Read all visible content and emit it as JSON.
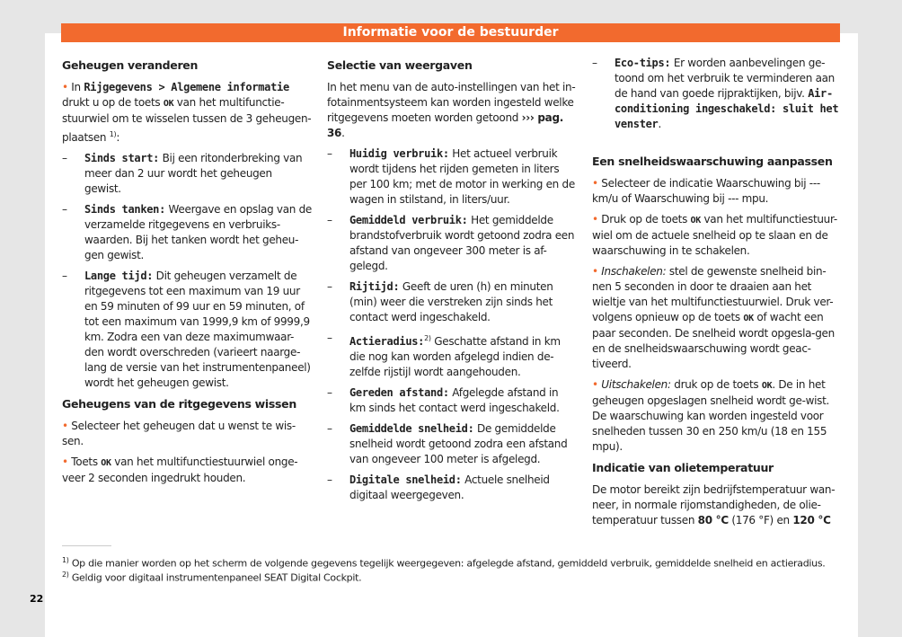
{
  "header": {
    "title": "Informatie voor de bestuurder"
  },
  "columns": [
    [
      {
        "k": "h",
        "r": [
          {
            "t": "Geheugen veranderen"
          }
        ]
      },
      {
        "k": "b",
        "r": [
          {
            "t": "In "
          },
          {
            "t": "Rijgegevens > Algemene informatie",
            "s": "mono"
          },
          {
            "t": " drukt u op de toets "
          },
          {
            "t": "OK",
            "s": "ok"
          },
          {
            "t": " van het multifunctie-stuurwiel om te wisselen tussen de 3 geheugen-plaatsen "
          },
          {
            "t": "1)",
            "s": "sup"
          },
          {
            "t": ":"
          }
        ]
      },
      {
        "k": "d",
        "r": [
          {
            "t": "Sinds start:",
            "s": "mono"
          },
          {
            "t": " Bij een ritonderbreking van meer dan 2 uur wordt het geheugen gewist."
          }
        ]
      },
      {
        "k": "d",
        "r": [
          {
            "t": "Sinds tanken:",
            "s": "mono"
          },
          {
            "t": " Weergave en opslag van de verzamelde ritgegevens en verbruiks-waarden. Bij het tanken wordt het geheu-gen gewist."
          }
        ]
      },
      {
        "k": "d",
        "r": [
          {
            "t": "Lange tijd:",
            "s": "mono"
          },
          {
            "t": " Dit geheugen verzamelt de ritgegevens tot een maximum van 19 uur en 59 minuten of 99 uur en 59 minuten, of tot een maximum van 1999,9 km of 9999,9 km. Zodra een van deze maximumwaar-den wordt overschreden (varieert naarge-lang de versie van het instrumentenpaneel) wordt het geheugen gewist."
          }
        ]
      },
      {
        "k": "h",
        "r": [
          {
            "t": "Geheugens van de ritgegevens wissen"
          }
        ]
      },
      {
        "k": "b",
        "r": [
          {
            "t": " Selecteer het geheugen dat u wenst te wis-sen."
          }
        ]
      },
      {
        "k": "b",
        "r": [
          {
            "t": "Toets "
          },
          {
            "t": "OK",
            "s": "ok"
          },
          {
            "t": " van het multifunctiestuurwiel onge-veer 2 seconden ingedrukt houden."
          }
        ]
      }
    ],
    [
      {
        "k": "h",
        "r": [
          {
            "t": "Selectie van weergaven"
          }
        ]
      },
      {
        "k": "p",
        "r": [
          {
            "t": "In het menu van de auto-instellingen van het in-fotainmentsysteem kan worden ingesteld welke ritgegevens moeten worden getoond "
          },
          {
            "t": "››› pag. 36",
            "s": "bold"
          },
          {
            "t": "."
          }
        ]
      },
      {
        "k": "d",
        "r": [
          {
            "t": "Huidig verbruik:",
            "s": "mono"
          },
          {
            "t": " Het actueel verbruik wordt tijdens het rijden gemeten in liters per 100 km; met de motor in werking en de wagen in stilstand, in liters/uur."
          }
        ]
      },
      {
        "k": "d",
        "r": [
          {
            "t": "Gemiddeld verbruik:",
            "s": "mono"
          },
          {
            "t": " Het gemiddelde brandstofverbruik wordt getoond zodra een afstand van ongeveer 300 meter is af-gelegd."
          }
        ]
      },
      {
        "k": "d",
        "r": [
          {
            "t": "Rijtijd:",
            "s": "mono"
          },
          {
            "t": " Geeft de uren (h) en minuten (min) weer die verstreken zijn sinds het contact werd ingeschakeld."
          }
        ]
      },
      {
        "k": "d",
        "r": [
          {
            "t": "Actieradius:",
            "s": "mono"
          },
          {
            "t": "2)",
            "s": "sup"
          },
          {
            "t": " Geschatte afstand in km die nog kan worden afgelegd indien de-zelfde rijstijl wordt aangehouden."
          }
        ]
      },
      {
        "k": "d",
        "r": [
          {
            "t": "Gereden afstand:",
            "s": "mono"
          },
          {
            "t": " Afgelegde afstand in km sinds het contact werd ingeschakeld."
          }
        ]
      },
      {
        "k": "d",
        "r": [
          {
            "t": "Gemiddelde snelheid:",
            "s": "mono"
          },
          {
            "t": " De gemiddelde snelheid wordt getoond zodra een afstand van ongeveer 100 meter is afgelegd."
          }
        ]
      },
      {
        "k": "d",
        "r": [
          {
            "t": "Digitale snelheid:",
            "s": "mono"
          },
          {
            "t": " Actuele snelheid digitaal weergegeven."
          }
        ]
      }
    ],
    [
      {
        "k": "d",
        "r": [
          {
            "t": "Eco-tips:",
            "s": "mono"
          },
          {
            "t": " Er worden aanbevelingen ge-toond om het verbruik te verminderen aan de hand van goede rijpraktijken, bijv. "
          },
          {
            "t": "Air-conditioning ingeschakeld: sluit het venster",
            "s": "mono"
          },
          {
            "t": "."
          }
        ]
      },
      {
        "k": "gap",
        "r": []
      },
      {
        "k": "h",
        "r": [
          {
            "t": "Een snelheidswaarschuwing aanpassen"
          }
        ]
      },
      {
        "k": "b",
        "r": [
          {
            "t": " Selecteer de indicatie Waarschuwing bij --- km/u of Waarschuwing bij --- mpu."
          }
        ]
      },
      {
        "k": "b",
        "r": [
          {
            "t": " Druk op de toets "
          },
          {
            "t": "OK",
            "s": "ok"
          },
          {
            "t": " van het multifunctiestuur-wiel om de actuele snelheid op te slaan en de waarschuwing in te schakelen."
          }
        ]
      },
      {
        "k": "b",
        "r": [
          {
            "t": "Inschakelen:",
            "s": "italic"
          },
          {
            "t": " stel de gewenste snelheid bin-nen 5 seconden in door te draaien aan het wieltje van het multifunctiestuurwiel. Druk ver-volgens opnieuw op de toets "
          },
          {
            "t": "OK",
            "s": "ok"
          },
          {
            "t": " of wacht een paar seconden. De snelheid wordt opgesla-gen en de snelheidswaarschuwing wordt geac-tiveerd."
          }
        ]
      },
      {
        "k": "b",
        "r": [
          {
            "t": "Uitschakelen:",
            "s": "italic"
          },
          {
            "t": " druk op de toets "
          },
          {
            "t": "OK",
            "s": "ok"
          },
          {
            "t": ". De in het geheugen opgeslagen snelheid wordt ge-wist. De waarschuwing kan worden ingesteld voor snelheden tussen 30 en 250 km/u (18 en 155 mpu)."
          }
        ]
      },
      {
        "k": "h",
        "r": [
          {
            "t": "Indicatie van olietemperatuur"
          }
        ]
      },
      {
        "k": "p",
        "r": [
          {
            "t": "De motor bereikt zijn bedrijfstemperatuur wan-neer, in normale rijomstandigheden, de olie-temperatuur tussen "
          },
          {
            "t": "80 °C",
            "s": "bold"
          },
          {
            "t": " (176 °F) en "
          },
          {
            "t": "120 °C",
            "s": "bold"
          }
        ]
      }
    ]
  ],
  "footnotes": [
    {
      "mark": "1)",
      "text": "Op die manier worden op het scherm de volgende gegevens tegelijk weergegeven: afgelegde afstand, gemiddeld verbruik, gemiddelde snelheid en actieradius."
    },
    {
      "mark": "2)",
      "text": "Geldig voor digitaal instrumentenpaneel SEAT Digital Cockpit."
    }
  ],
  "page_number": "22",
  "colors": {
    "accent": "#f26a2e"
  }
}
